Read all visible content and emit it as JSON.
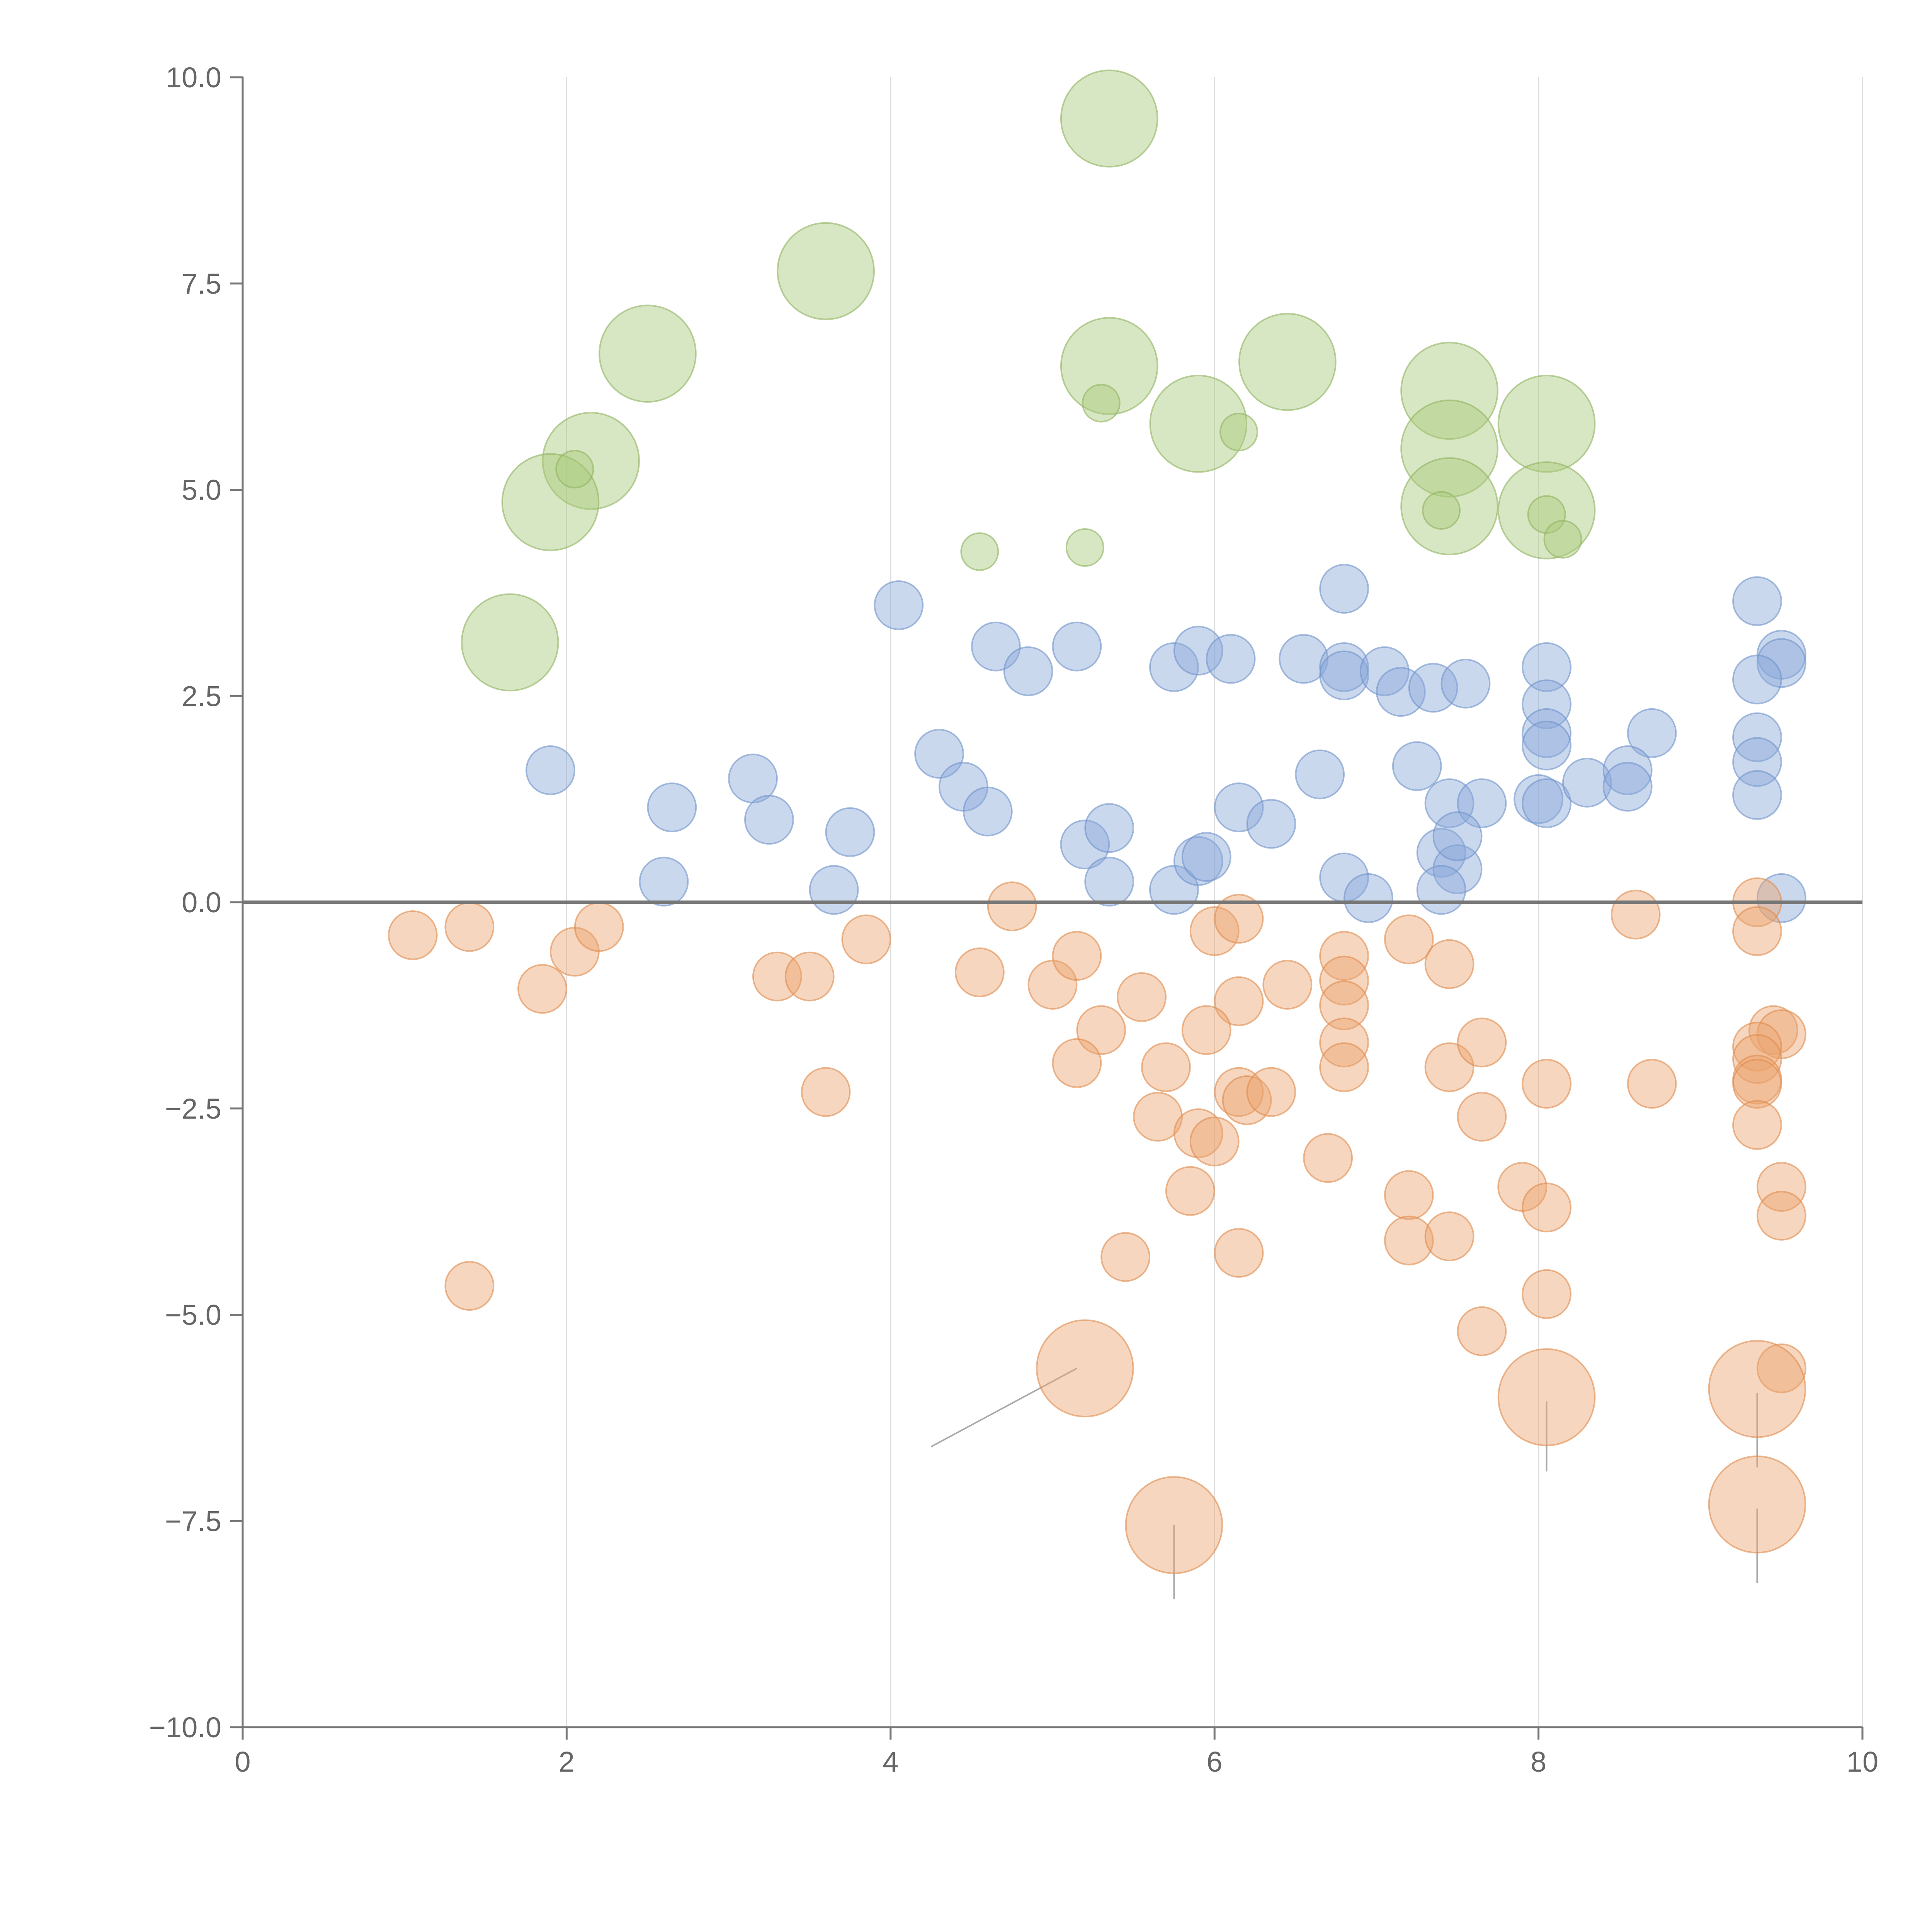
{
  "chart_data": {
    "type": "scatter",
    "title": "",
    "xlabel": "",
    "ylabel": "",
    "xlim": [
      0,
      10
    ],
    "ylim": [
      -10,
      10
    ],
    "x_ticks": [
      0,
      2,
      4,
      6,
      8,
      10
    ],
    "x_tick_labels": [
      "0",
      "2",
      "4",
      "6",
      "8",
      "10"
    ],
    "y_ticks": [
      10,
      7.5,
      5,
      2.5,
      0,
      -2.5,
      -5,
      -7.5,
      -10
    ],
    "y_tick_labels": [
      "10.0",
      "7.5",
      "5.0",
      "2.5",
      "0.0",
      "−2.5",
      "−5.0",
      "−7.5",
      "−10.0"
    ],
    "grid": "vertical",
    "zero_line": 0,
    "series": [
      {
        "name": "green",
        "color": "#a9c97a",
        "stroke": "#8fb35f",
        "points": [
          {
            "x": 5.35,
            "y": 9.5,
            "s": 2.6
          },
          {
            "x": 3.6,
            "y": 7.65,
            "s": 2.6
          },
          {
            "x": 2.5,
            "y": 6.65,
            "s": 2.6
          },
          {
            "x": 5.35,
            "y": 6.5,
            "s": 2.6
          },
          {
            "x": 6.45,
            "y": 6.55,
            "s": 2.6
          },
          {
            "x": 7.45,
            "y": 6.2,
            "s": 2.6
          },
          {
            "x": 8.05,
            "y": 5.8,
            "s": 2.6
          },
          {
            "x": 5.9,
            "y": 5.8,
            "s": 2.6
          },
          {
            "x": 7.45,
            "y": 5.5,
            "s": 2.6
          },
          {
            "x": 2.15,
            "y": 5.35,
            "s": 2.6
          },
          {
            "x": 1.9,
            "y": 4.85,
            "s": 2.6
          },
          {
            "x": 7.45,
            "y": 4.8,
            "s": 2.6
          },
          {
            "x": 8.05,
            "y": 4.75,
            "s": 2.6
          },
          {
            "x": 1.65,
            "y": 3.15,
            "s": 2.6
          },
          {
            "x": 5.3,
            "y": 6.05,
            "s": 1.0
          },
          {
            "x": 6.15,
            "y": 5.7,
            "s": 1.0
          },
          {
            "x": 2.05,
            "y": 5.25,
            "s": 1.0
          },
          {
            "x": 7.4,
            "y": 4.75,
            "s": 1.0
          },
          {
            "x": 8.05,
            "y": 4.7,
            "s": 1.0
          },
          {
            "x": 8.15,
            "y": 4.4,
            "s": 1.0
          },
          {
            "x": 4.55,
            "y": 4.25,
            "s": 1.0
          },
          {
            "x": 5.2,
            "y": 4.3,
            "s": 1.0
          }
        ]
      },
      {
        "name": "blue",
        "color": "#89a9d9",
        "stroke": "#6f93c9",
        "points": [
          {
            "x": 4.05,
            "y": 3.6,
            "s": 1.3
          },
          {
            "x": 4.65,
            "y": 3.1,
            "s": 1.3
          },
          {
            "x": 4.85,
            "y": 2.8,
            "s": 1.3
          },
          {
            "x": 5.15,
            "y": 3.1,
            "s": 1.3
          },
          {
            "x": 5.75,
            "y": 2.85,
            "s": 1.3
          },
          {
            "x": 5.9,
            "y": 3.05,
            "s": 1.3
          },
          {
            "x": 6.1,
            "y": 2.95,
            "s": 1.3
          },
          {
            "x": 6.55,
            "y": 2.95,
            "s": 1.3
          },
          {
            "x": 6.8,
            "y": 2.85,
            "s": 1.3
          },
          {
            "x": 6.8,
            "y": 2.75,
            "s": 1.3
          },
          {
            "x": 6.8,
            "y": 3.8,
            "s": 1.3
          },
          {
            "x": 7.05,
            "y": 2.8,
            "s": 1.3
          },
          {
            "x": 7.15,
            "y": 2.55,
            "s": 1.3
          },
          {
            "x": 7.35,
            "y": 2.6,
            "s": 1.3
          },
          {
            "x": 7.55,
            "y": 2.65,
            "s": 1.3
          },
          {
            "x": 8.05,
            "y": 2.85,
            "s": 1.3
          },
          {
            "x": 8.05,
            "y": 2.4,
            "s": 1.3
          },
          {
            "x": 8.05,
            "y": 2.05,
            "s": 1.3
          },
          {
            "x": 8.05,
            "y": 1.9,
            "s": 1.3
          },
          {
            "x": 8.7,
            "y": 2.05,
            "s": 1.3
          },
          {
            "x": 9.35,
            "y": 3.65,
            "s": 1.3
          },
          {
            "x": 9.5,
            "y": 3.0,
            "s": 1.3
          },
          {
            "x": 9.5,
            "y": 2.9,
            "s": 1.3
          },
          {
            "x": 9.35,
            "y": 2.7,
            "s": 1.3
          },
          {
            "x": 9.35,
            "y": 2.0,
            "s": 1.3
          },
          {
            "x": 9.35,
            "y": 1.7,
            "s": 1.3
          },
          {
            "x": 9.35,
            "y": 1.3,
            "s": 1.3
          },
          {
            "x": 1.9,
            "y": 1.6,
            "s": 1.3
          },
          {
            "x": 2.65,
            "y": 1.15,
            "s": 1.3
          },
          {
            "x": 3.15,
            "y": 1.5,
            "s": 1.3
          },
          {
            "x": 3.25,
            "y": 1.0,
            "s": 1.3
          },
          {
            "x": 3.75,
            "y": 0.85,
            "s": 1.3
          },
          {
            "x": 4.3,
            "y": 1.8,
            "s": 1.3
          },
          {
            "x": 4.45,
            "y": 1.4,
            "s": 1.3
          },
          {
            "x": 4.6,
            "y": 1.1,
            "s": 1.3
          },
          {
            "x": 6.15,
            "y": 1.15,
            "s": 1.3
          },
          {
            "x": 6.35,
            "y": 0.95,
            "s": 1.3
          },
          {
            "x": 6.65,
            "y": 1.55,
            "s": 1.3
          },
          {
            "x": 7.25,
            "y": 1.65,
            "s": 1.3
          },
          {
            "x": 7.45,
            "y": 1.2,
            "s": 1.3
          },
          {
            "x": 7.65,
            "y": 1.2,
            "s": 1.3
          },
          {
            "x": 8.0,
            "y": 1.25,
            "s": 1.3
          },
          {
            "x": 8.05,
            "y": 1.2,
            "s": 1.3
          },
          {
            "x": 8.3,
            "y": 1.45,
            "s": 1.3
          },
          {
            "x": 8.55,
            "y": 1.6,
            "s": 1.3
          },
          {
            "x": 8.55,
            "y": 1.4,
            "s": 1.3
          },
          {
            "x": 2.6,
            "y": 0.25,
            "s": 1.3
          },
          {
            "x": 3.65,
            "y": 0.15,
            "s": 1.3
          },
          {
            "x": 5.2,
            "y": 0.7,
            "s": 1.3
          },
          {
            "x": 5.35,
            "y": 0.9,
            "s": 1.3
          },
          {
            "x": 5.35,
            "y": 0.25,
            "s": 1.3
          },
          {
            "x": 5.75,
            "y": 0.15,
            "s": 1.3
          },
          {
            "x": 5.9,
            "y": 0.5,
            "s": 1.3
          },
          {
            "x": 5.95,
            "y": 0.55,
            "s": 1.3
          },
          {
            "x": 6.8,
            "y": 0.3,
            "s": 1.3
          },
          {
            "x": 6.95,
            "y": 0.05,
            "s": 1.3
          },
          {
            "x": 7.4,
            "y": 0.6,
            "s": 1.3
          },
          {
            "x": 7.5,
            "y": 0.4,
            "s": 1.3
          },
          {
            "x": 7.5,
            "y": 0.8,
            "s": 1.3
          },
          {
            "x": 7.4,
            "y": 0.15,
            "s": 1.3
          },
          {
            "x": 9.5,
            "y": 0.05,
            "s": 1.3
          }
        ]
      },
      {
        "name": "orange",
        "color": "#eba46e",
        "stroke": "#e08a4c",
        "points": [
          {
            "x": 1.05,
            "y": -0.4,
            "s": 1.3
          },
          {
            "x": 1.4,
            "y": -0.3,
            "s": 1.3
          },
          {
            "x": 2.05,
            "y": -0.6,
            "s": 1.3
          },
          {
            "x": 2.2,
            "y": -0.3,
            "s": 1.3
          },
          {
            "x": 1.85,
            "y": -1.05,
            "s": 1.3
          },
          {
            "x": 3.3,
            "y": -0.9,
            "s": 1.3
          },
          {
            "x": 3.5,
            "y": -0.9,
            "s": 1.3
          },
          {
            "x": 3.85,
            "y": -0.45,
            "s": 1.3
          },
          {
            "x": 4.75,
            "y": -0.05,
            "s": 1.3
          },
          {
            "x": 4.55,
            "y": -0.85,
            "s": 1.3
          },
          {
            "x": 5.0,
            "y": -1.0,
            "s": 1.3
          },
          {
            "x": 5.15,
            "y": -0.65,
            "s": 1.3
          },
          {
            "x": 5.55,
            "y": -1.15,
            "s": 1.3
          },
          {
            "x": 6.0,
            "y": -0.35,
            "s": 1.3
          },
          {
            "x": 6.15,
            "y": -0.2,
            "s": 1.3
          },
          {
            "x": 6.15,
            "y": -1.2,
            "s": 1.3
          },
          {
            "x": 6.45,
            "y": -1.0,
            "s": 1.3
          },
          {
            "x": 6.8,
            "y": -0.65,
            "s": 1.3
          },
          {
            "x": 6.8,
            "y": -0.95,
            "s": 1.3
          },
          {
            "x": 6.8,
            "y": -1.25,
            "s": 1.3
          },
          {
            "x": 7.2,
            "y": -0.45,
            "s": 1.3
          },
          {
            "x": 7.45,
            "y": -0.75,
            "s": 1.3
          },
          {
            "x": 8.6,
            "y": -0.15,
            "s": 1.3
          },
          {
            "x": 9.35,
            "y": 0.0,
            "s": 1.3
          },
          {
            "x": 9.35,
            "y": -0.35,
            "s": 1.3
          },
          {
            "x": 5.3,
            "y": -1.55,
            "s": 1.3
          },
          {
            "x": 5.15,
            "y": -1.95,
            "s": 1.3
          },
          {
            "x": 5.7,
            "y": -2.0,
            "s": 1.3
          },
          {
            "x": 5.95,
            "y": -1.55,
            "s": 1.3
          },
          {
            "x": 6.8,
            "y": -1.7,
            "s": 1.3
          },
          {
            "x": 6.8,
            "y": -2.0,
            "s": 1.3
          },
          {
            "x": 7.45,
            "y": -2.0,
            "s": 1.3
          },
          {
            "x": 7.65,
            "y": -1.7,
            "s": 1.3
          },
          {
            "x": 9.45,
            "y": -1.55,
            "s": 1.3
          },
          {
            "x": 9.5,
            "y": -1.6,
            "s": 1.3
          },
          {
            "x": 9.35,
            "y": -1.75,
            "s": 1.3
          },
          {
            "x": 9.35,
            "y": -1.9,
            "s": 1.3
          },
          {
            "x": 9.35,
            "y": -2.15,
            "s": 1.3
          },
          {
            "x": 9.35,
            "y": -2.2,
            "s": 1.3
          },
          {
            "x": 3.6,
            "y": -2.3,
            "s": 1.3
          },
          {
            "x": 6.15,
            "y": -2.3,
            "s": 1.3
          },
          {
            "x": 6.2,
            "y": -2.4,
            "s": 1.3
          },
          {
            "x": 6.35,
            "y": -2.3,
            "s": 1.3
          },
          {
            "x": 5.65,
            "y": -2.6,
            "s": 1.3
          },
          {
            "x": 5.9,
            "y": -2.8,
            "s": 1.3
          },
          {
            "x": 6.0,
            "y": -2.9,
            "s": 1.3
          },
          {
            "x": 8.05,
            "y": -2.2,
            "s": 1.3
          },
          {
            "x": 8.7,
            "y": -2.2,
            "s": 1.3
          },
          {
            "x": 7.65,
            "y": -2.6,
            "s": 1.3
          },
          {
            "x": 9.35,
            "y": -2.7,
            "s": 1.3
          },
          {
            "x": 6.7,
            "y": -3.1,
            "s": 1.3
          },
          {
            "x": 5.85,
            "y": -3.5,
            "s": 1.3
          },
          {
            "x": 7.2,
            "y": -3.55,
            "s": 1.3
          },
          {
            "x": 7.9,
            "y": -3.45,
            "s": 1.3
          },
          {
            "x": 8.05,
            "y": -3.7,
            "s": 1.3
          },
          {
            "x": 9.5,
            "y": -3.45,
            "s": 1.3
          },
          {
            "x": 9.5,
            "y": -3.8,
            "s": 1.3
          },
          {
            "x": 7.2,
            "y": -4.1,
            "s": 1.3
          },
          {
            "x": 7.45,
            "y": -4.05,
            "s": 1.3
          },
          {
            "x": 5.45,
            "y": -4.3,
            "s": 1.3
          },
          {
            "x": 6.15,
            "y": -4.25,
            "s": 1.3
          },
          {
            "x": 1.4,
            "y": -4.65,
            "s": 1.3
          },
          {
            "x": 8.05,
            "y": -4.75,
            "s": 1.3
          },
          {
            "x": 7.65,
            "y": -5.2,
            "s": 1.3
          },
          {
            "x": 9.5,
            "y": -5.65,
            "s": 1.3
          },
          {
            "x": 5.2,
            "y": -5.65,
            "s": 2.6
          },
          {
            "x": 8.05,
            "y": -6.0,
            "s": 2.6
          },
          {
            "x": 9.35,
            "y": -5.9,
            "s": 2.6
          },
          {
            "x": 5.75,
            "y": -7.55,
            "s": 2.6
          },
          {
            "x": 9.35,
            "y": -7.3,
            "s": 2.6
          }
        ]
      }
    ],
    "annotation_lines": [
      {
        "x1": 5.15,
        "y1": -5.65,
        "x2": 4.25,
        "y2": -6.6
      },
      {
        "x1": 5.75,
        "y1": -7.55,
        "x2": 5.75,
        "y2": -8.45
      },
      {
        "x1": 8.05,
        "y1": -6.05,
        "x2": 8.05,
        "y2": -6.9
      },
      {
        "x1": 9.35,
        "y1": -5.95,
        "x2": 9.35,
        "y2": -6.85
      },
      {
        "x1": 9.35,
        "y1": -7.35,
        "x2": 9.35,
        "y2": -8.25
      }
    ]
  }
}
